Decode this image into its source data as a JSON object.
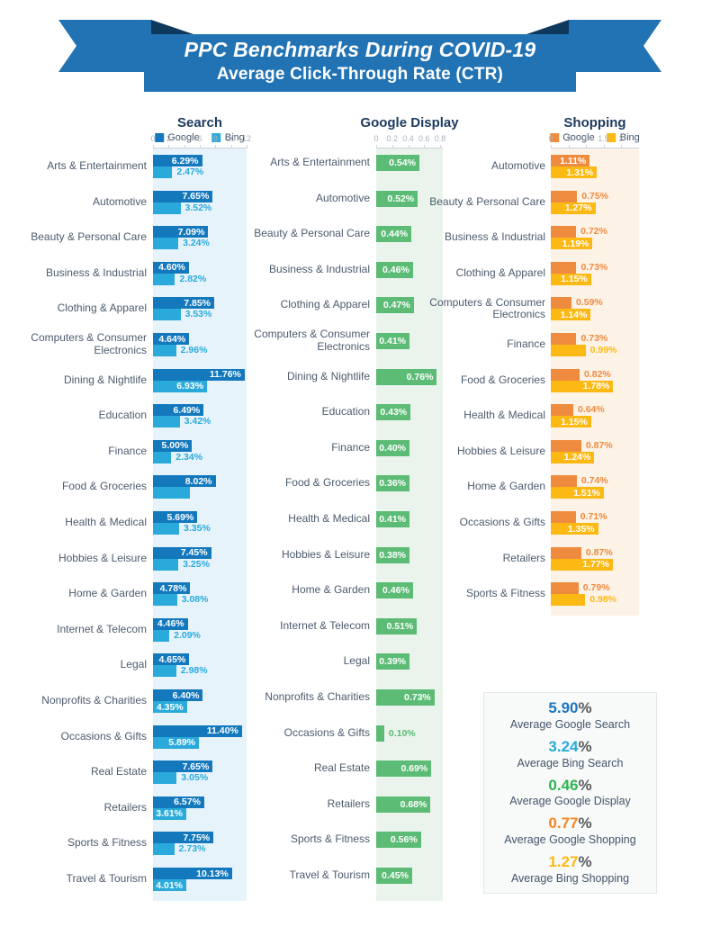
{
  "banner": {
    "title": "PPC Benchmarks During COVID-19",
    "subtitle": "Average Click-Through Rate (CTR)"
  },
  "colors": {
    "banner_blue": "#2273b4",
    "banner_fold_dark": "#0e385c",
    "google_search_blue": "#1478bd",
    "bing_search_cyan": "#29aadb",
    "display_green": "#5cbc75",
    "google_shopping_orange": "#ef8b3f",
    "bing_shopping_yellow": "#fdb913",
    "search_plot_bg": "#e7f3fb",
    "display_plot_bg": "#eaf4ec",
    "shopping_plot_bg": "#fdf2e6",
    "heading_navy": "#1b3a5e",
    "category_label_gray": "#4c5b6e",
    "axis_tick_gray": "#a9b2ba"
  },
  "chart_data": [
    {
      "type": "bar",
      "orientation": "horizontal",
      "title": "Search",
      "plot_bg": "#e7f3fb",
      "axis": {
        "max": 12,
        "ticks": [
          {
            "label": "0",
            "value": 0
          },
          {
            "label": "2",
            "value": 2
          },
          {
            "label": "4",
            "value": 4
          },
          {
            "label": "6",
            "value": 6
          },
          {
            "label": "8",
            "value": 8
          },
          {
            "label": "10",
            "value": 10
          },
          {
            "label": "12",
            "value": 12
          }
        ]
      },
      "categories": [
        "Arts & Entertainment",
        "Automotive",
        "Beauty & Personal Care",
        "Business & Industrial",
        "Clothing & Apparel",
        "Computers & Consumer Electronics",
        "Dining & Nightlife",
        "Education",
        "Finance",
        "Food & Groceries",
        "Health & Medical",
        "Hobbies & Leisure",
        "Home & Garden",
        "Internet & Telecom",
        "Legal",
        "Nonprofits & Charities",
        "Occasions & Gifts",
        "Real Estate",
        "Retailers",
        "Sports & Fitness",
        "Travel & Tourism"
      ],
      "series": [
        {
          "name": "Google",
          "color": "#1478bd",
          "values": [
            6.29,
            7.65,
            7.09,
            4.6,
            7.85,
            4.64,
            11.76,
            6.49,
            5.0,
            8.02,
            5.69,
            7.45,
            4.78,
            4.46,
            4.65,
            6.4,
            11.4,
            7.65,
            6.57,
            7.75,
            10.13
          ],
          "labels": [
            "6.29%",
            "7.65%",
            "7.09%",
            "4.60%",
            "7.85%",
            "4.64%",
            "11.76%",
            "6.49%",
            "5.00%",
            "8.02%",
            "5.69%",
            "7.45%",
            "4.78%",
            "4.46%",
            "4.65%",
            "6.40%",
            "11.40%",
            "7.65%",
            "6.57%",
            "7.75%",
            "10.13%"
          ],
          "label_inside": [
            true,
            true,
            true,
            true,
            true,
            true,
            true,
            true,
            true,
            true,
            true,
            true,
            true,
            true,
            true,
            true,
            true,
            true,
            true,
            true,
            true
          ]
        },
        {
          "name": "Bing",
          "color": "#29aadb",
          "values": [
            2.47,
            3.52,
            3.24,
            2.82,
            3.53,
            2.96,
            6.93,
            3.42,
            2.34,
            4.7,
            3.35,
            3.25,
            3.08,
            2.09,
            2.98,
            4.35,
            5.89,
            3.05,
            3.61,
            2.73,
            4.01
          ],
          "labels": [
            "2.47%",
            "3.52%",
            "3.24%",
            "2.82%",
            "3.53%",
            "2.96%",
            "6.93%",
            "3.42%",
            "2.34%",
            "",
            "3.35%",
            "3.25%",
            "3.08%",
            "2.09%",
            "2.98%",
            "4.35%",
            "5.89%",
            "3.05%",
            "3.61%",
            "2.73%",
            "4.01%"
          ],
          "label_inside": [
            false,
            false,
            false,
            false,
            false,
            false,
            true,
            false,
            false,
            false,
            false,
            false,
            false,
            false,
            false,
            true,
            true,
            false,
            true,
            false,
            true
          ]
        }
      ]
    },
    {
      "type": "bar",
      "orientation": "horizontal",
      "title": "Google Display",
      "plot_bg": "#eaf4ec",
      "axis": {
        "max": 0.8,
        "ticks": [
          {
            "label": "0",
            "value": 0
          },
          {
            "label": "0.2",
            "value": 0.2
          },
          {
            "label": "0.4",
            "value": 0.4
          },
          {
            "label": "0.6",
            "value": 0.6
          },
          {
            "label": "0.8",
            "value": 0.8
          }
        ]
      },
      "categories": [
        "Arts & Entertainment",
        "Automotive",
        "Beauty & Personal Care",
        "Business & Industrial",
        "Clothing & Apparel",
        "Computers & Consumer Electronics",
        "Dining & Nightlife",
        "Education",
        "Finance",
        "Food & Groceries",
        "Health & Medical",
        "Hobbies & Leisure",
        "Home & Garden",
        "Internet & Telecom",
        "Legal",
        "Nonprofits & Charities",
        "Occasions & Gifts",
        "Real Estate",
        "Retailers",
        "Sports & Fitness",
        "Travel & Tourism"
      ],
      "series": [
        {
          "name": "Google",
          "color": "#5cbc75",
          "values": [
            0.54,
            0.52,
            0.44,
            0.46,
            0.47,
            0.41,
            0.76,
            0.43,
            0.4,
            0.36,
            0.41,
            0.38,
            0.46,
            0.51,
            0.39,
            0.73,
            0.1,
            0.69,
            0.68,
            0.56,
            0.45
          ],
          "labels": [
            "0.54%",
            "0.52%",
            "0.44%",
            "0.46%",
            "0.47%",
            "0.41%",
            "0.76%",
            "0.43%",
            "0.40%",
            "0.36%",
            "0.41%",
            "0.38%",
            "0.46%",
            "0.51%",
            "0.39%",
            "0.73%",
            "0.10%",
            "0.69%",
            "0.68%",
            "0.56%",
            "0.45%"
          ],
          "label_inside": [
            true,
            true,
            true,
            true,
            true,
            true,
            true,
            true,
            true,
            true,
            true,
            true,
            true,
            true,
            true,
            true,
            false,
            true,
            true,
            true,
            true
          ]
        }
      ]
    },
    {
      "type": "bar",
      "orientation": "horizontal",
      "title": "Shopping",
      "plot_bg": "#fdf2e6",
      "axis": {
        "max": 2,
        "ticks": [
          {
            "label": "0",
            "value": 0
          },
          {
            "label": ".5",
            "value": 0.5
          },
          {
            "label": "1",
            "value": 1
          },
          {
            "label": "1.5",
            "value": 1.5
          },
          {
            "label": "2",
            "value": 2
          }
        ]
      },
      "categories": [
        "Automotive",
        "Beauty & Personal Care",
        "Business & Industrial",
        "Clothing & Apparel",
        "Computers & Consumer Electronics",
        "Finance",
        "Food & Groceries",
        "Health & Medical",
        "Hobbies & Leisure",
        "Home & Garden",
        "Occasions & Gifts",
        "Retailers",
        "Sports & Fitness"
      ],
      "series": [
        {
          "name": "Google",
          "color": "#ef8b3f",
          "values": [
            1.11,
            0.75,
            0.72,
            0.73,
            0.59,
            0.73,
            0.82,
            0.64,
            0.87,
            0.74,
            0.71,
            0.87,
            0.79
          ],
          "labels": [
            "1.11%",
            "0.75%",
            "0.72%",
            "0.73%",
            "0.59%",
            "0.73%",
            "0.82%",
            "0.64%",
            "0.87%",
            "0.74%",
            "0.71%",
            "0.87%",
            "0.79%"
          ],
          "label_inside": [
            true,
            false,
            false,
            false,
            false,
            false,
            false,
            false,
            false,
            false,
            false,
            false,
            false
          ]
        },
        {
          "name": "Bing",
          "color": "#fdb913",
          "values": [
            1.31,
            1.27,
            1.19,
            1.15,
            1.14,
            0.99,
            1.78,
            1.15,
            1.24,
            1.51,
            1.35,
            1.77,
            0.98
          ],
          "labels": [
            "1.31%",
            "1.27%",
            "1.19%",
            "1.15%",
            "1.14%",
            "0.99%",
            "1.78%",
            "1.15%",
            "1.24%",
            "1.51%",
            "1.35%",
            "1.77%",
            "0.98%"
          ],
          "label_inside": [
            true,
            true,
            true,
            true,
            true,
            false,
            true,
            true,
            true,
            true,
            true,
            true,
            false
          ]
        }
      ]
    }
  ],
  "summary": {
    "items": [
      {
        "value": "5.90",
        "unit": "%",
        "label": "Average Google Search",
        "color": "#1c77bd"
      },
      {
        "value": "3.24",
        "unit": "%",
        "label": "Average Bing Search",
        "color": "#2aa9db"
      },
      {
        "value": "0.46",
        "unit": "%",
        "label": "Average Google Display",
        "color": "#2eb44f"
      },
      {
        "value": "0.77",
        "unit": "%",
        "label": "Average Google Shopping",
        "color": "#f6851f"
      },
      {
        "value": "1.27",
        "unit": "%",
        "label": "Average Bing Shopping",
        "color": "#fdb815"
      }
    ]
  }
}
